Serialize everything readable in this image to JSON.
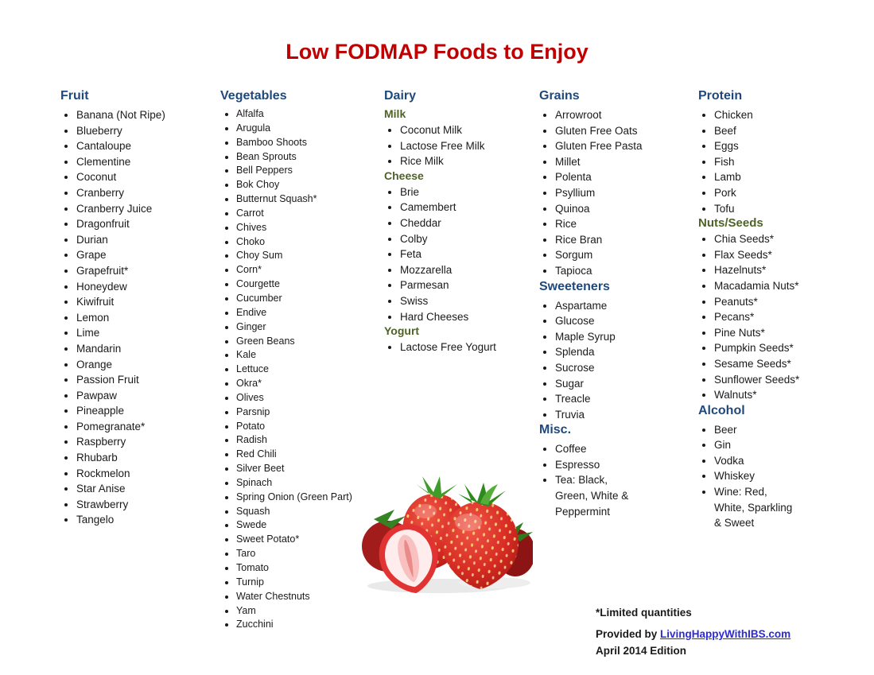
{
  "title": "Low FODMAP Foods to Enjoy",
  "colors": {
    "title_red": "#C00000",
    "heading_blue": "#1F497D",
    "subheading_green": "#4F6228",
    "link_blue": "#2B2BD5",
    "body_text": "#1A1A1A"
  },
  "columns": [
    {
      "sections": [
        {
          "heading": "Fruit",
          "items": [
            "Banana (Not Ripe)",
            "Blueberry",
            "Cantaloupe",
            "Clementine",
            "Coconut",
            "Cranberry",
            "Cranberry Juice",
            "Dragonfruit",
            "Durian",
            "Grape",
            "Grapefruit*",
            "Honeydew",
            "Kiwifruit",
            "Lemon",
            "Lime",
            "Mandarin",
            "Orange",
            "Passion Fruit",
            "Pawpaw",
            "Pineapple",
            "Pomegranate*",
            "Raspberry",
            "Rhubarb",
            "Rockmelon",
            "Star Anise",
            "Strawberry",
            "Tangelo"
          ]
        }
      ]
    },
    {
      "sections": [
        {
          "heading": "Vegetables",
          "items": [
            "Alfalfa",
            "Arugula",
            "Bamboo Shoots",
            "Bean Sprouts",
            "Bell Peppers",
            "Bok Choy",
            "Butternut Squash*",
            "Carrot",
            "Chives",
            "Choko",
            "Choy Sum",
            "Corn*",
            "Courgette",
            "Cucumber",
            "Endive",
            "Ginger",
            "Green Beans",
            "Kale",
            "Lettuce",
            "Okra*",
            "Olives",
            "Parsnip",
            "Potato",
            "Radish",
            "Red Chili",
            "Silver Beet",
            "Spinach",
            "Spring Onion (Green Part)",
            "Squash",
            "Swede",
            "Sweet Potato*",
            "Taro",
            "Tomato",
            "Turnip",
            "Water Chestnuts",
            "Yam",
            "Zucchini"
          ]
        }
      ]
    },
    {
      "sections": [
        {
          "heading": "Dairy",
          "items": []
        },
        {
          "heading": "Milk",
          "items": [
            "Coconut Milk",
            "Lactose Free Milk",
            "Rice Milk"
          ]
        },
        {
          "heading": "Cheese",
          "items": [
            "Brie",
            "Camembert",
            "Cheddar",
            "Colby",
            "Feta",
            "Mozzarella",
            "Parmesan",
            "Swiss",
            "Hard Cheeses"
          ]
        },
        {
          "heading": "Yogurt",
          "items": [
            "Lactose Free Yogurt"
          ]
        }
      ]
    },
    {
      "sections": [
        {
          "heading": "Grains",
          "items": [
            "Arrowroot",
            "Gluten Free Oats",
            "Gluten Free Pasta",
            "Millet",
            "Polenta",
            "Psyllium",
            "Quinoa",
            "Rice",
            "Rice Bran",
            "Sorgum",
            "Tapioca"
          ]
        },
        {
          "heading": "Sweeteners",
          "items": [
            "Aspartame",
            "Glucose",
            "Maple Syrup",
            "Splenda",
            "Sucrose",
            "Sugar",
            "Treacle",
            "Truvia"
          ]
        },
        {
          "heading": "Misc.",
          "items": [
            "Coffee",
            "Espresso",
            "Tea: Black, Green, White & Peppermint"
          ]
        }
      ]
    },
    {
      "sections": [
        {
          "heading": "Protein",
          "items": [
            "Chicken",
            "Beef",
            "Eggs",
            "Fish",
            "Lamb",
            "Pork",
            "Tofu"
          ]
        },
        {
          "heading": "Nuts/Seeds",
          "items": [
            "Chia Seeds*",
            "Flax Seeds*",
            "Hazelnuts*",
            "Macadamia Nuts*",
            "Peanuts*",
            "Pecans*",
            "Pine Nuts*",
            "Pumpkin Seeds*",
            "Sesame Seeds*",
            "Sunflower Seeds*",
            "Walnuts*"
          ]
        },
        {
          "heading": "Alcohol",
          "items": [
            "Beer",
            "Gin",
            "Vodka",
            "Whiskey",
            "Wine: Red, White, Sparkling & Sweet"
          ]
        }
      ]
    }
  ],
  "image": {
    "alt": "strawberries-photo"
  },
  "footer": {
    "note": "*Limited quantities",
    "provided_prefix": "Provided by ",
    "link_text": "LivingHappyWithIBS.com",
    "edition": "April 2014 Edition"
  }
}
